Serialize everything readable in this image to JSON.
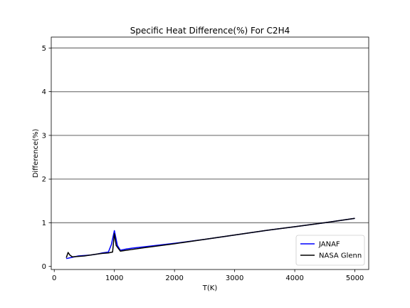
{
  "chart_data": {
    "type": "line",
    "title": "Specific Heat Difference(%) For C2H4",
    "xlabel": "T(K)",
    "ylabel": "Difference(%)",
    "xlim": [
      -50,
      5230
    ],
    "ylim": [
      -0.07,
      5.25
    ],
    "xticks": [
      0,
      1000,
      2000,
      3000,
      4000,
      5000
    ],
    "yticks": [
      0,
      1,
      2,
      3,
      4,
      5
    ],
    "grid": "horizontal",
    "legend": "lower-right",
    "series": [
      {
        "name": "JANAF",
        "color": "#0000ff",
        "x": [
          200,
          300,
          400,
          500,
          600,
          700,
          800,
          900,
          950,
          1000,
          1050,
          1100,
          1200,
          1300,
          1500,
          2000,
          2500,
          3000,
          3500,
          4000,
          4500,
          5000
        ],
        "y": [
          0.18,
          0.21,
          0.24,
          0.25,
          0.26,
          0.28,
          0.31,
          0.33,
          0.5,
          0.82,
          0.48,
          0.37,
          0.4,
          0.42,
          0.45,
          0.53,
          0.62,
          0.72,
          0.82,
          0.91,
          1.0,
          1.1
        ]
      },
      {
        "name": "NASA Glenn",
        "color": "#000000",
        "x": [
          200,
          230,
          260,
          300,
          400,
          500,
          600,
          700,
          800,
          900,
          970,
          1000,
          1030,
          1100,
          1200,
          1300,
          1500,
          2000,
          2500,
          3000,
          3500,
          4000,
          4500,
          5000
        ],
        "y": [
          0.2,
          0.32,
          0.26,
          0.22,
          0.23,
          0.24,
          0.26,
          0.28,
          0.3,
          0.31,
          0.33,
          0.75,
          0.48,
          0.35,
          0.37,
          0.39,
          0.43,
          0.52,
          0.62,
          0.72,
          0.82,
          0.91,
          1.0,
          1.1
        ]
      }
    ]
  }
}
